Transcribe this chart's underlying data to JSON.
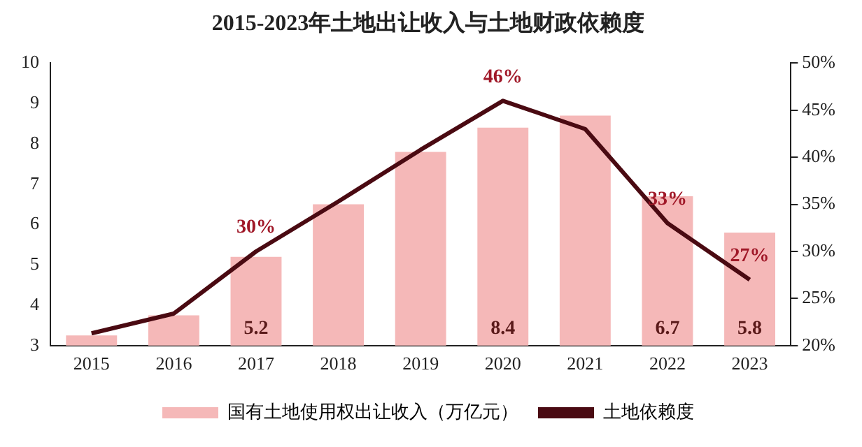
{
  "chart_data": {
    "type": "bar",
    "title": "2015-2023年土地出让收入与土地财政依赖度",
    "categories": [
      "2015",
      "2016",
      "2017",
      "2018",
      "2019",
      "2020",
      "2021",
      "2022",
      "2023"
    ],
    "series": [
      {
        "name": "国有土地使用权出让收入（万亿元）",
        "color": "#f5b8b8",
        "values": [
          3.25,
          3.75,
          5.2,
          6.5,
          7.8,
          8.4,
          8.7,
          6.7,
          5.8
        ],
        "value_labels": [
          null,
          null,
          "5.2",
          null,
          null,
          "8.4",
          null,
          "6.7",
          "5.8"
        ]
      },
      {
        "name": "土地依赖度",
        "type": "line",
        "axis": "y2",
        "color": "#4a0a12",
        "values": [
          21.3,
          23.4,
          30,
          35.3,
          40.8,
          46,
          43,
          33,
          27
        ],
        "value_labels": [
          null,
          null,
          "30%",
          null,
          null,
          "46%",
          null,
          "33%",
          "27%"
        ]
      }
    ],
    "ylim": [
      3,
      10
    ],
    "yticks": [
      3,
      4,
      5,
      6,
      7,
      8,
      9,
      10
    ],
    "y2lim": [
      20,
      50
    ],
    "y2ticks": [
      {
        "value": 20,
        "label": "20%"
      },
      {
        "value": 25,
        "label": "25%"
      },
      {
        "value": 30,
        "label": "30%"
      },
      {
        "value": 35,
        "label": "35%"
      },
      {
        "value": 40,
        "label": "40%"
      },
      {
        "value": 45,
        "label": "45%"
      },
      {
        "value": 50,
        "label": "50%"
      }
    ],
    "grid": false,
    "legend": "bottom",
    "marker": "none",
    "line_style": "solid"
  }
}
